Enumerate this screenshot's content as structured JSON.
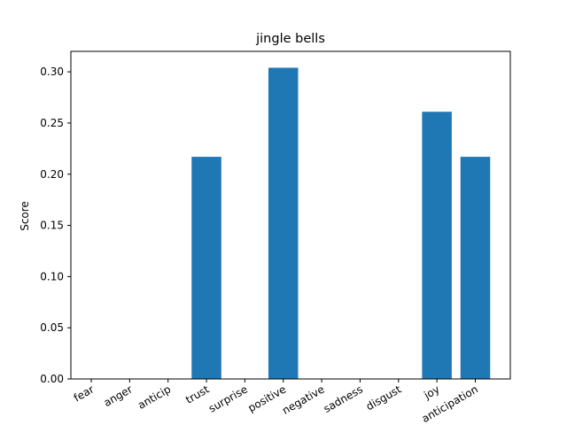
{
  "chart_data": {
    "type": "bar",
    "title": "jingle bells",
    "xlabel": "",
    "ylabel": "Score",
    "categories": [
      "fear",
      "anger",
      "anticip",
      "trust",
      "surprise",
      "positive",
      "negative",
      "sadness",
      "disgust",
      "joy",
      "anticipation"
    ],
    "values": [
      0,
      0,
      0,
      0.217,
      0,
      0.304,
      0,
      0,
      0,
      0.261,
      0.217
    ],
    "ylim": [
      0,
      0.32
    ],
    "yticks": [
      "0.00",
      "0.05",
      "0.10",
      "0.15",
      "0.20",
      "0.25",
      "0.30"
    ],
    "bar_color": "#1f77b4",
    "grid": false,
    "legend": "none"
  }
}
